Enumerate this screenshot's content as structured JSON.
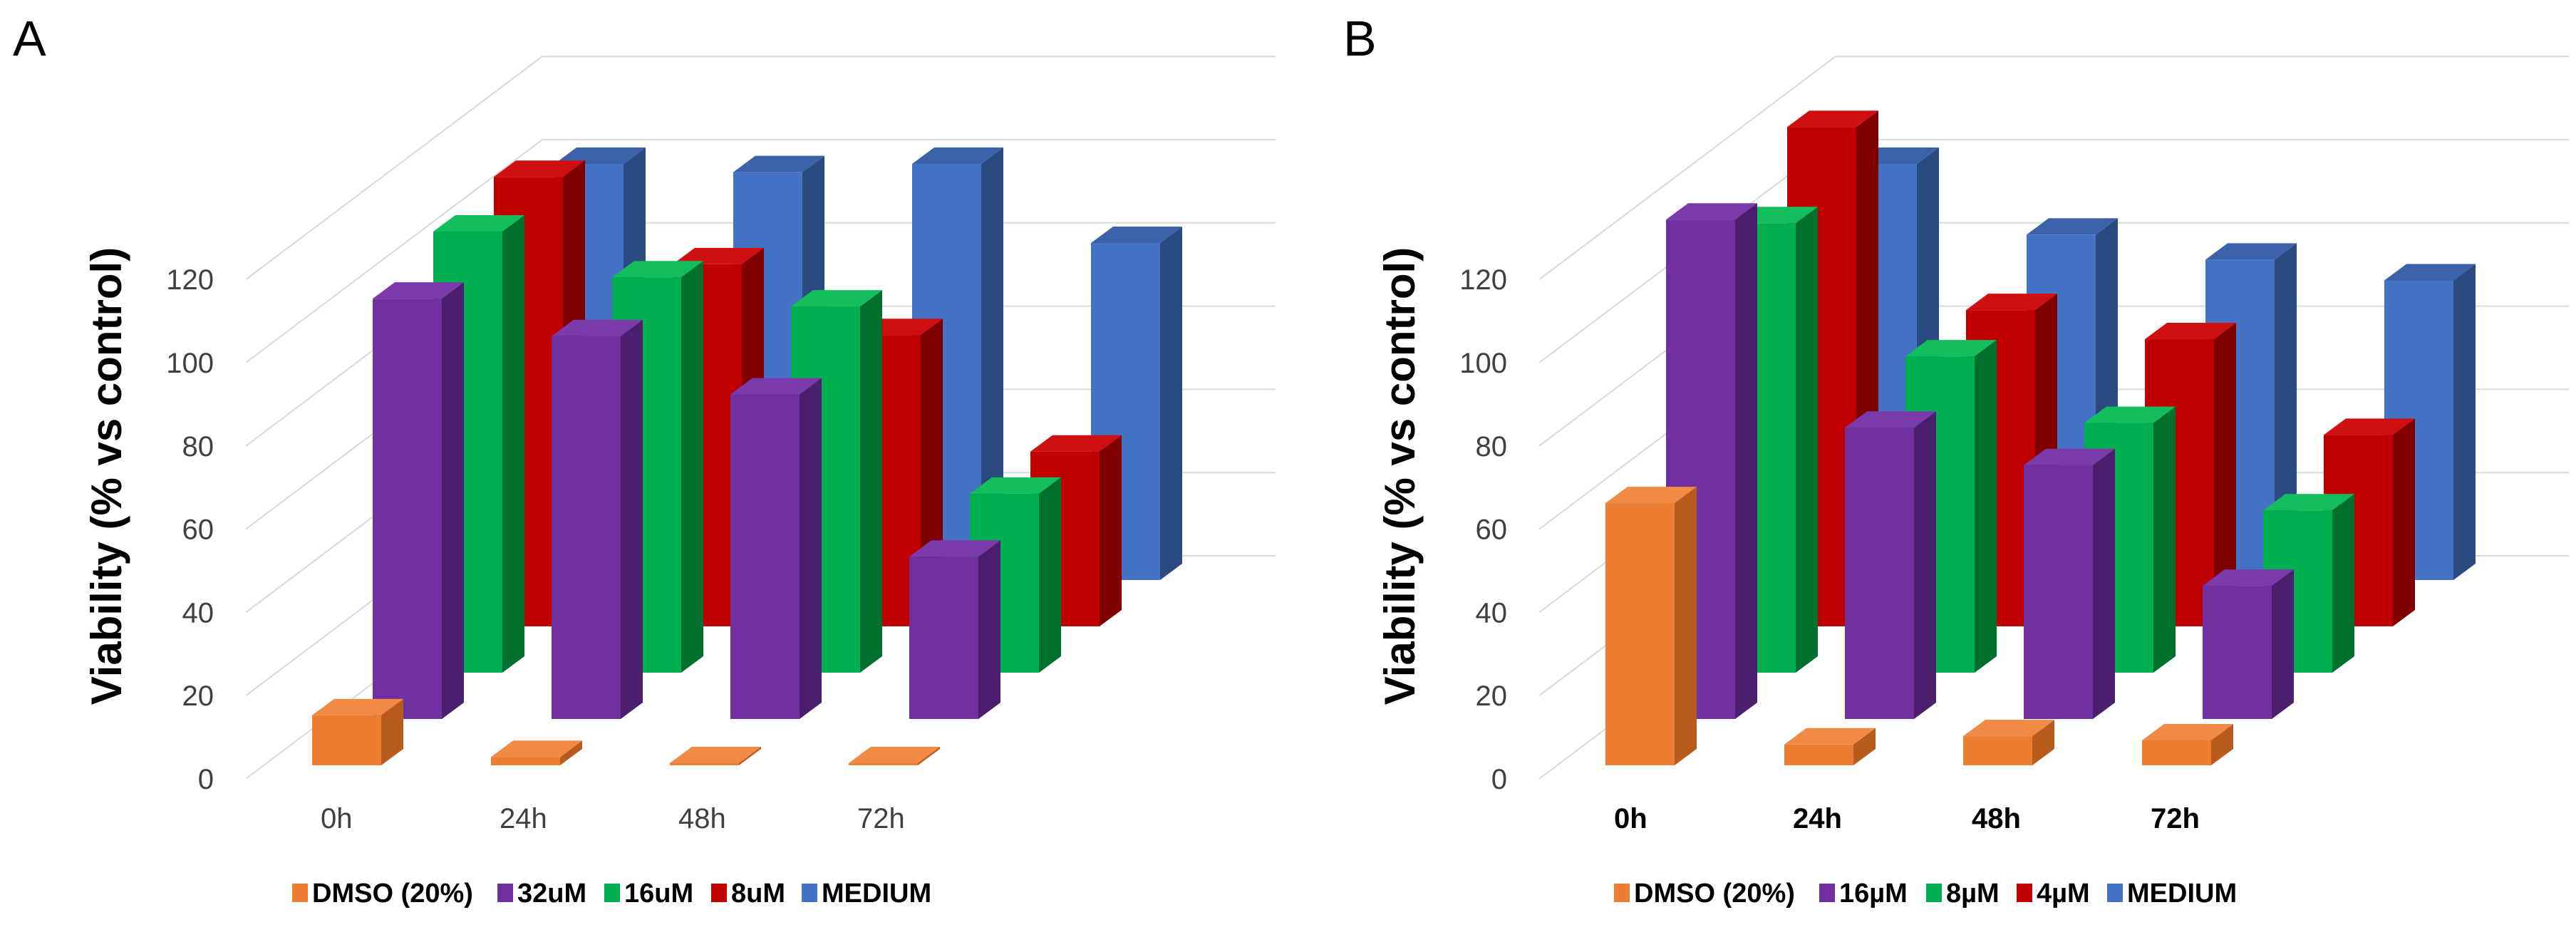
{
  "colors": {
    "DMSO": [
      "#ED7D31",
      "#F08A44",
      "#B85C1E"
    ],
    "high": [
      "#7030A0",
      "#7A3AAA",
      "#4B1E6E"
    ],
    "mid": [
      "#00B050",
      "#12BF5C",
      "#00702F"
    ],
    "low": [
      "#C00000",
      "#D01010",
      "#800000"
    ],
    "MEDIUM": [
      "#4472C4",
      "#3B62A8",
      "#2B4A80"
    ]
  },
  "chart_data": [
    {
      "panel": "A",
      "type": "bar",
      "subtype": "3d-column",
      "ylabel": "Viability (% vs control)",
      "xlabel": "",
      "categories": [
        "0h",
        "24h",
        "48h",
        "72h"
      ],
      "yticks": [
        "0",
        "20",
        "40",
        "60",
        "80",
        "100",
        "120"
      ],
      "ylim": [
        0,
        120
      ],
      "grid": true,
      "legend_position": "bottom",
      "category_labels_bold": false,
      "series": [
        {
          "name": "DMSO (20%)",
          "color_key": "DMSO",
          "values": [
            12,
            2,
            0.5,
            0.5
          ]
        },
        {
          "name": "32uM",
          "color_key": "high",
          "values": [
            101,
            92,
            78,
            39
          ]
        },
        {
          "name": "16uM",
          "color_key": "mid",
          "values": [
            106,
            95,
            88,
            43
          ]
        },
        {
          "name": "8uM",
          "color_key": "low",
          "values": [
            108,
            87,
            70,
            42
          ]
        },
        {
          "name": "MEDIUM",
          "color_key": "MEDIUM",
          "values": [
            100,
            98,
            100,
            81
          ]
        }
      ]
    },
    {
      "panel": "B",
      "type": "bar",
      "subtype": "3d-column",
      "ylabel": "Viability (% vs control)",
      "xlabel": "",
      "categories": [
        "0h",
        "24h",
        "48h",
        "72h"
      ],
      "yticks": [
        "0",
        "20",
        "40",
        "60",
        "80",
        "100",
        "120"
      ],
      "ylim": [
        0,
        120
      ],
      "grid": true,
      "legend_position": "bottom",
      "category_labels_bold": true,
      "series": [
        {
          "name": "DMSO (20%)",
          "color_key": "DMSO",
          "values": [
            63,
            5,
            7,
            6
          ]
        },
        {
          "name": "16µM",
          "color_key": "high",
          "values": [
            120,
            70,
            61,
            32
          ]
        },
        {
          "name": "8µM",
          "color_key": "mid",
          "values": [
            108,
            76,
            60,
            39
          ]
        },
        {
          "name": "4µM",
          "color_key": "low",
          "values": [
            120,
            76,
            69,
            46
          ]
        },
        {
          "name": "MEDIUM",
          "color_key": "MEDIUM",
          "values": [
            100,
            83,
            77,
            72
          ]
        }
      ]
    }
  ]
}
